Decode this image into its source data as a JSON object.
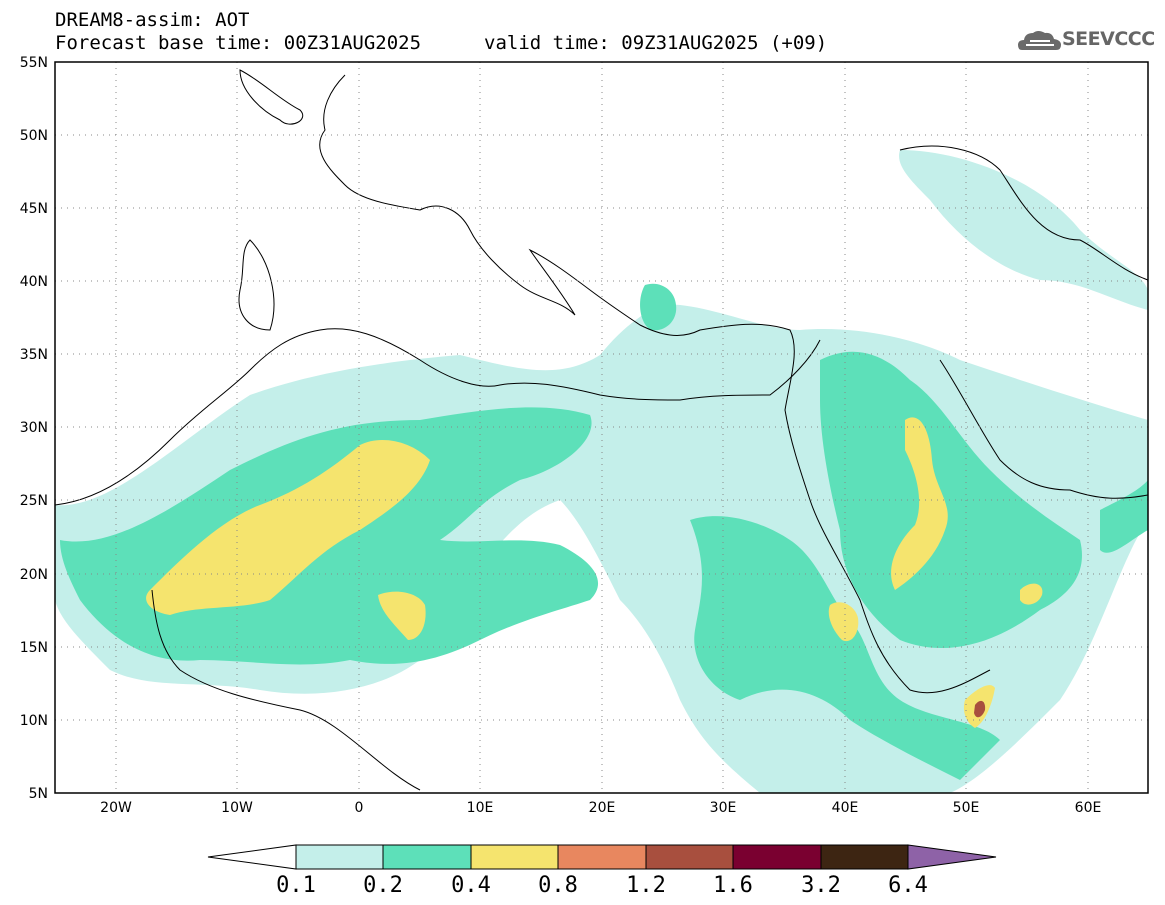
{
  "header": {
    "title": "DREAM8-assim: AOT",
    "base_time": "Forecast base time: 00Z31AUG2025",
    "valid_time": "valid time: 09Z31AUG2025 (+09)",
    "logo_text": "SEEVCCC"
  },
  "map": {
    "lon_range": [
      -25,
      65
    ],
    "lat_range": [
      5,
      55
    ],
    "lat_ticks": [
      "55N",
      "50N",
      "45N",
      "40N",
      "35N",
      "30N",
      "25N",
      "20N",
      "15N",
      "10N",
      "5N"
    ],
    "lon_ticks": [
      "20W",
      "10W",
      "0",
      "10E",
      "20E",
      "30E",
      "40E",
      "50E",
      "60E"
    ],
    "gridlines": "dotted"
  },
  "legend": {
    "labels": [
      "0.1",
      "0.2",
      "0.4",
      "0.8",
      "1.2",
      "1.6",
      "3.2",
      "6.4"
    ],
    "colors": [
      "#c4efea",
      "#5de0b9",
      "#f5e46e",
      "#e8875f",
      "#a84f3e",
      "#7a0030",
      "#3d2512",
      "#8e62a7"
    ]
  }
}
